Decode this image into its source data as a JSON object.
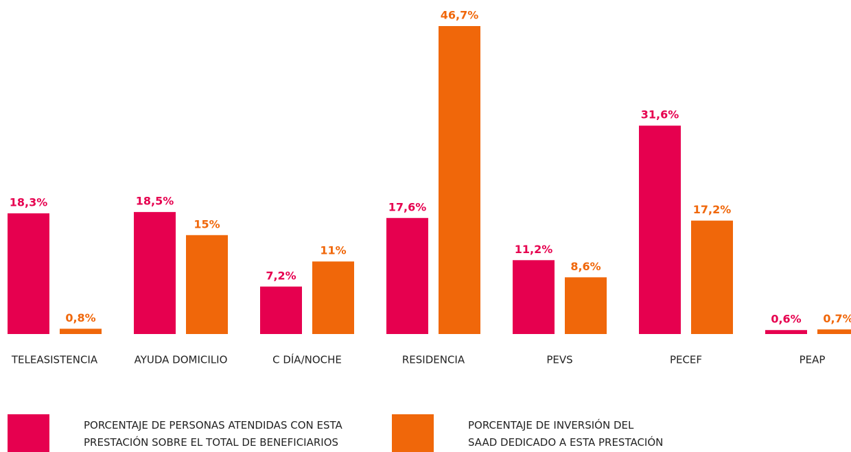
{
  "chart_data": {
    "type": "bar",
    "categories": [
      "TELEASISTENCIA",
      "AYUDA DOMICILIO",
      "C DÍA/NOCHE",
      "RESIDENCIA",
      "PEVS",
      "PECEF",
      "PEAP"
    ],
    "series": [
      {
        "name": "PORCENTAJE DE PERSONAS ATENDIDAS CON ESTA PRESTACIÓN SOBRE EL TOTAL DE BENEFICIARIOS",
        "color": "#e6004f",
        "values": [
          18.3,
          18.5,
          7.2,
          17.6,
          11.2,
          31.6,
          0.6
        ],
        "value_labels": [
          "18,3%",
          "18,5%",
          "7,2%",
          "17,6%",
          "11,2%",
          "31,6%",
          "0,6%"
        ]
      },
      {
        "name": "PORCENTAJE DE INVERSIÓN DEL SAAD DEDICADO A ESTA PRESTACIÓN",
        "color": "#f0670a",
        "values": [
          0.8,
          15,
          11,
          46.7,
          8.6,
          17.2,
          0.7
        ],
        "value_labels": [
          "0,8%",
          "15%",
          "11%",
          "46,7%",
          "8,6%",
          "17,2%",
          "0,7%"
        ]
      }
    ]
  }
}
